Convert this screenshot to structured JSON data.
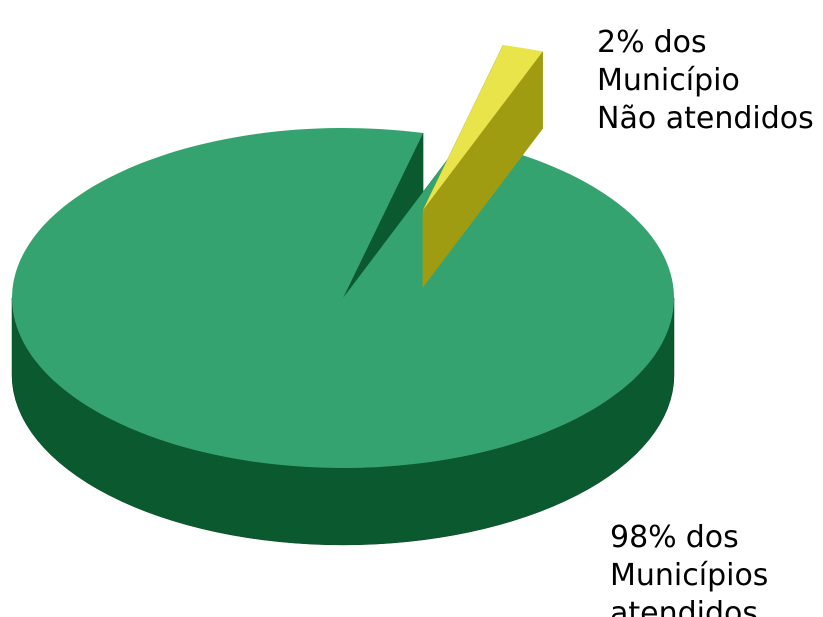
{
  "chart_data": {
    "type": "pie",
    "three_d": true,
    "values": [
      98,
      2
    ],
    "value_labels": [
      "98%",
      "2%"
    ],
    "categories": [
      [
        "dos",
        "Municípios",
        "atendidos"
      ],
      [
        "dos",
        "Município",
        "Não atendidos"
      ]
    ],
    "colors": [
      "#35a36f",
      "#e8e44a"
    ],
    "side_colors": [
      "#0b5a2f",
      "#a09c12"
    ],
    "exploded": [
      false,
      true
    ]
  }
}
